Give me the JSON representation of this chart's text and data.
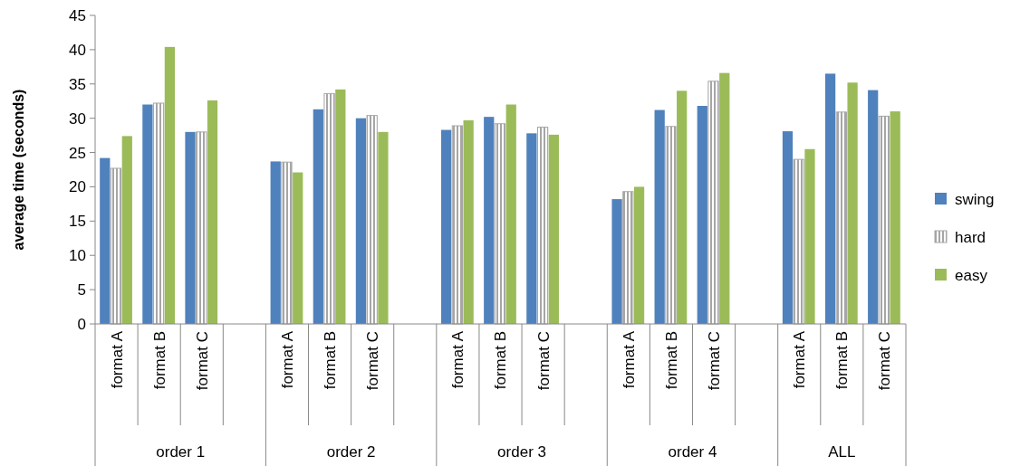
{
  "chart_data": {
    "type": "bar",
    "ylabel": "average time (seconds)",
    "categories": [
      "format A",
      "format B",
      "format C",
      null,
      "format A",
      "format B",
      "format C",
      null,
      "format A",
      "format B",
      "format C",
      null,
      "format A",
      "format B",
      "format C",
      null,
      "format A",
      "format B",
      "format C"
    ],
    "series": [
      {
        "name": "swing",
        "color": "#4f81bd",
        "values": [
          24.2,
          32.0,
          28.0,
          null,
          23.7,
          31.3,
          30.0,
          null,
          28.3,
          30.2,
          27.8,
          null,
          18.2,
          31.2,
          31.8,
          null,
          28.1,
          36.5,
          34.1
        ]
      },
      {
        "name": "hard",
        "color": "#a6a6a6",
        "values": [
          22.7,
          32.2,
          28.0,
          null,
          23.6,
          33.6,
          30.4,
          null,
          28.9,
          29.2,
          28.7,
          null,
          19.3,
          28.8,
          35.4,
          null,
          24.0,
          30.9,
          30.3
        ]
      },
      {
        "name": "easy",
        "color": "#9bbb59",
        "values": [
          27.4,
          40.4,
          32.6,
          null,
          22.1,
          34.2,
          28.0,
          null,
          29.7,
          32.0,
          27.6,
          null,
          20.0,
          34.0,
          36.6,
          null,
          25.5,
          35.2,
          31.0
        ]
      }
    ],
    "annotations": [
      "order 1",
      "order 2",
      "order 3",
      "order 4",
      "ALL"
    ],
    "ylim": [
      0,
      45
    ],
    "yticks": [
      0,
      5,
      10,
      15,
      20,
      25,
      30,
      35,
      40,
      45
    ],
    "grid": false,
    "legend": "right"
  }
}
